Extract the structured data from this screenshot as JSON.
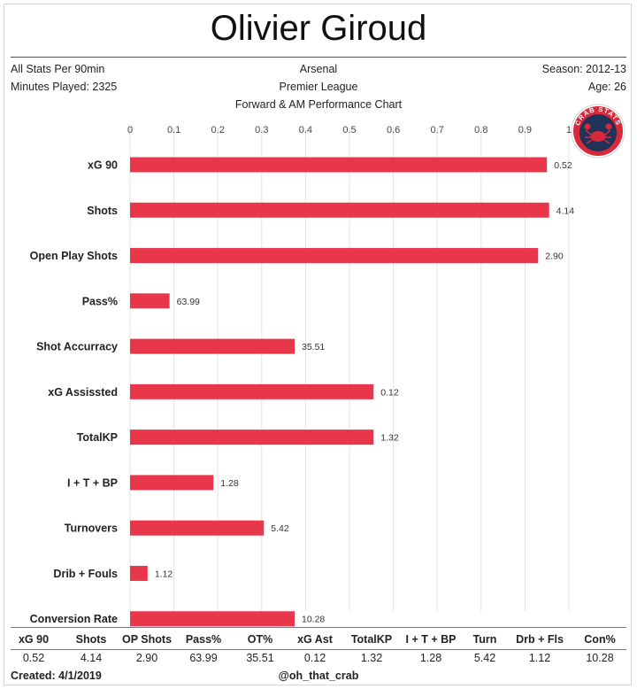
{
  "title": "Olivier Giroud",
  "header": {
    "left_line1": "All Stats Per 90min",
    "left_line2": "Minutes Played: 2325",
    "center_line1": "Arsenal",
    "center_line2": "Premier League",
    "center_line3": "Forward & AM Performance Chart",
    "right_line1": "Season: 2012-13",
    "right_line2": "Age: 26"
  },
  "logo": {
    "text": "CRAB STATS",
    "icon": "crab-icon"
  },
  "colors": {
    "bar": "#e8374a",
    "grid": "#e3e3e3"
  },
  "chart_data": {
    "type": "bar",
    "orientation": "horizontal",
    "xlim": [
      0,
      1
    ],
    "xticks": [
      "0",
      "0.1",
      "0.2",
      "0.3",
      "0.4",
      "0.5",
      "0.6",
      "0.7",
      "0.8",
      "0.9",
      "1"
    ],
    "grid": true,
    "categories": [
      "xG 90",
      "Shots",
      "Open Play Shots",
      "Pass%",
      "Shot Accurracy",
      "xG Assissted",
      "TotalKP",
      "I + T + BP",
      "Turnovers",
      "Drib + Fouls",
      "Conversion Rate"
    ],
    "values": [
      0.95,
      0.955,
      0.93,
      0.09,
      0.375,
      0.555,
      0.555,
      0.19,
      0.305,
      0.04,
      0.375
    ],
    "data_labels": [
      "0.52",
      "4.14",
      "2.90",
      "63.99",
      "35.51",
      "0.12",
      "1.32",
      "1.28",
      "5.42",
      "1.12",
      "10.28"
    ]
  },
  "stats_table": {
    "headers": [
      "xG 90",
      "Shots",
      "OP Shots",
      "Pass%",
      "OT%",
      "xG Ast",
      "TotalKP",
      "I + T + BP",
      "Turn",
      "Drb + Fls",
      "Con%"
    ],
    "values": [
      "0.52",
      "4.14",
      "2.90",
      "63.99",
      "35.51",
      "0.12",
      "1.32",
      "1.28",
      "5.42",
      "1.12",
      "10.28"
    ]
  },
  "footer": {
    "created": "Created: 4/1/2019",
    "handle": "@oh_that_crab"
  }
}
